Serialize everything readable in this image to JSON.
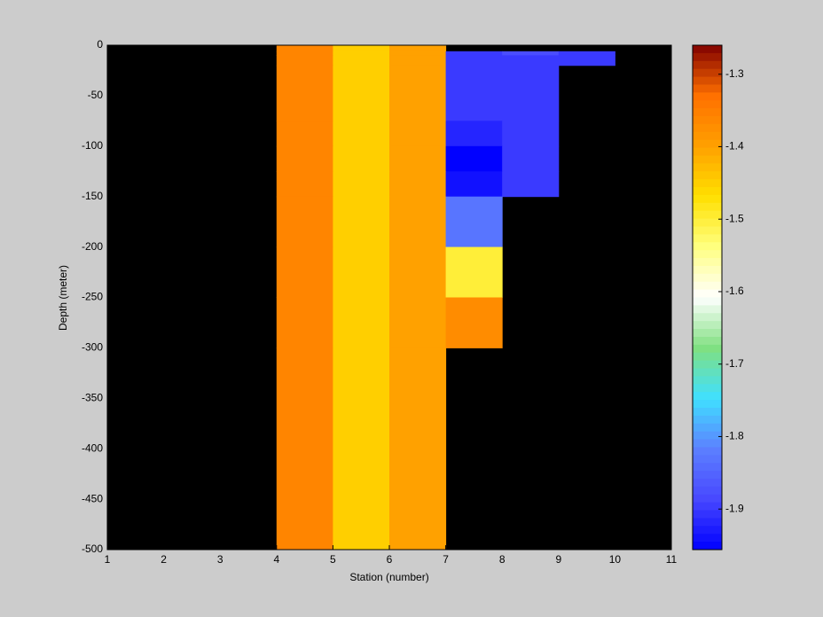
{
  "chart_data": {
    "type": "heatmap",
    "xlabel": "Station (number)",
    "ylabel": "Depth (meter)",
    "x": [
      1,
      2,
      3,
      4,
      5,
      6,
      7,
      8,
      9,
      10,
      11
    ],
    "y": [
      0,
      -6,
      -10,
      -20,
      -75,
      -100,
      -125,
      -150,
      -200,
      -250,
      -300,
      -500
    ],
    "z": [
      [
        null,
        null,
        null,
        -1.36,
        -1.45,
        -1.4,
        null,
        null,
        null,
        null
      ],
      [
        null,
        null,
        null,
        -1.36,
        -1.45,
        -1.4,
        -1.9,
        -1.88,
        -1.9,
        null
      ],
      [
        null,
        null,
        null,
        -1.36,
        -1.45,
        -1.4,
        -1.9,
        -1.9,
        -1.9,
        null
      ],
      [
        null,
        null,
        null,
        -1.36,
        -1.45,
        -1.4,
        -1.9,
        -1.9,
        null,
        null
      ],
      [
        null,
        null,
        null,
        -1.36,
        -1.45,
        -1.4,
        -1.92,
        -1.9,
        null,
        null
      ],
      [
        null,
        null,
        null,
        -1.36,
        -1.45,
        -1.4,
        -1.955,
        -1.9,
        null,
        null
      ],
      [
        null,
        null,
        null,
        -1.36,
        -1.45,
        -1.4,
        -1.94,
        -1.9,
        null,
        null
      ],
      [
        null,
        null,
        null,
        -1.36,
        -1.45,
        -1.4,
        -1.83,
        null,
        null,
        null
      ],
      [
        null,
        null,
        null,
        -1.36,
        -1.45,
        -1.4,
        -1.5,
        null,
        null,
        null
      ],
      [
        null,
        null,
        null,
        -1.36,
        -1.45,
        -1.4,
        -1.37,
        null,
        null,
        null
      ],
      [
        null,
        null,
        null,
        -1.36,
        -1.45,
        -1.4,
        null,
        null,
        null,
        null
      ]
    ],
    "xlim": [
      1,
      11
    ],
    "xticks": [
      1,
      2,
      3,
      4,
      5,
      6,
      7,
      8,
      9,
      10,
      11
    ],
    "ylim": [
      -500,
      0
    ],
    "yticks": [
      0,
      -50,
      -100,
      -150,
      -200,
      -250,
      -300,
      -350,
      -400,
      -450,
      -500
    ],
    "zlim": [
      -1.956,
      -1.26
    ],
    "zticks": [
      -1.3,
      -1.4,
      -1.5,
      -1.6,
      -1.7,
      -1.8,
      -1.9
    ],
    "colormap": [
      "#0000ff",
      "#4848ff",
      "#5c80ff",
      "#40e0ff",
      "#80e080",
      "#ffffff",
      "#ffff80",
      "#ffe000",
      "#ffa000",
      "#ff7000",
      "#800000"
    ],
    "missing_color": "#000000"
  }
}
